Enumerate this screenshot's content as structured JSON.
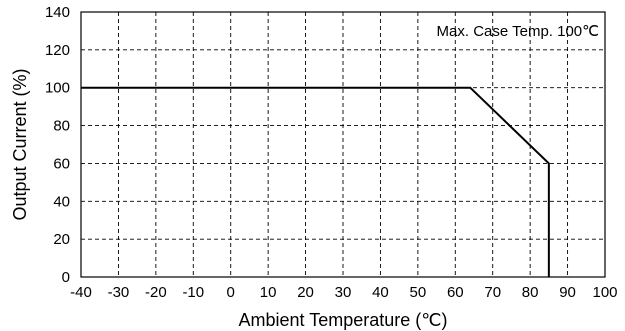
{
  "chart_data": {
    "type": "line",
    "title": "",
    "xlabel": "Ambient Temperature (℃)",
    "ylabel": "Output Current (%)",
    "xlim": [
      -40,
      100
    ],
    "ylim": [
      0,
      140
    ],
    "x_ticks": [
      -40,
      -30,
      -20,
      -10,
      0,
      10,
      20,
      30,
      40,
      50,
      60,
      70,
      80,
      90,
      100
    ],
    "y_ticks": [
      0,
      20,
      40,
      60,
      80,
      100,
      120,
      140
    ],
    "grid": true,
    "grid_style": "dashed",
    "legend": "none",
    "annotation": "Max. Case Temp. 100℃",
    "series": [
      {
        "x": [
          -40,
          64,
          85,
          85
        ],
        "y": [
          100,
          100,
          60,
          0
        ],
        "color": "#000000"
      }
    ]
  }
}
